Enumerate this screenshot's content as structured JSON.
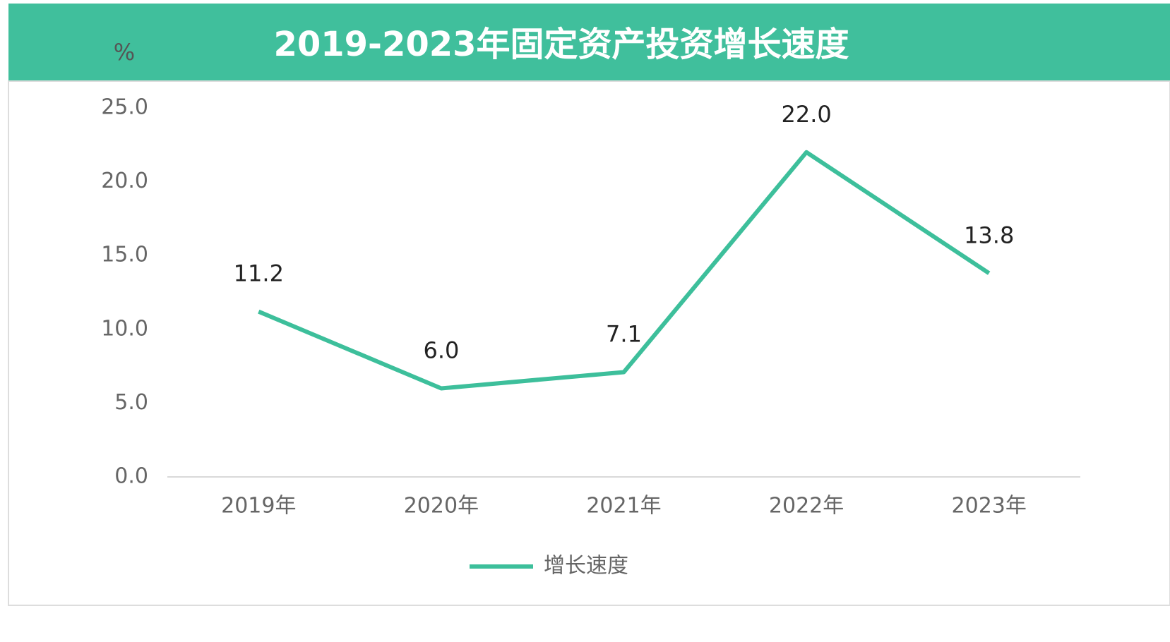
{
  "chart_data": {
    "type": "line",
    "title": "2019-2023年固定资产投资增长速度",
    "y_label": "%",
    "categories": [
      "2019年",
      "2020年",
      "2021年",
      "2022年",
      "2023年"
    ],
    "series": [
      {
        "name": "增长速度",
        "color": "#3dbf9b",
        "values": [
          11.2,
          6.0,
          7.1,
          22.0,
          13.8
        ],
        "value_labels": [
          "11.2",
          "6.0",
          "7.1",
          "22.0",
          "13.8"
        ]
      }
    ],
    "ylim": [
      0,
      25
    ],
    "yticks": [
      {
        "value": 0,
        "label": "0.0"
      },
      {
        "value": 5,
        "label": "5.0"
      },
      {
        "value": 10,
        "label": "10.0"
      },
      {
        "value": 15,
        "label": "15.0"
      },
      {
        "value": 20,
        "label": "20.0"
      },
      {
        "value": 25,
        "label": "25.0"
      }
    ],
    "header_color": "#40bf9c",
    "legend": "bottom"
  }
}
